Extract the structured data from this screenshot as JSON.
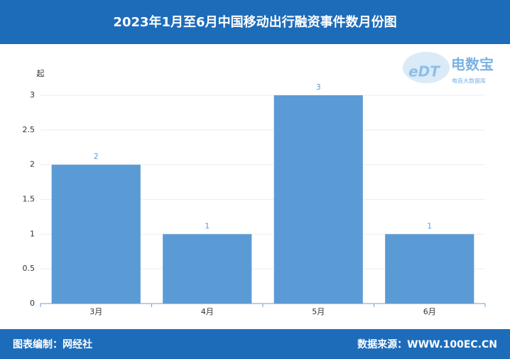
{
  "chart_data": {
    "type": "bar",
    "title": "2023年1月至6月中国移动出行融资事件数月份图",
    "y_label": "起",
    "categories": [
      "3月",
      "4月",
      "5月",
      "6月"
    ],
    "values": [
      2,
      1,
      3,
      1
    ],
    "color": "#5b9bd5",
    "ylim": [
      0,
      3
    ],
    "yticks": [
      0,
      0.5,
      1,
      1.5,
      2,
      2.5,
      3
    ],
    "grid": true
  },
  "logo": {
    "mark": "eDT",
    "name": "电数宝",
    "tagline": "电商大数据库"
  },
  "footer": {
    "left": "图表编制：网经社",
    "right": "数据来源：WWW.100EC.CN"
  }
}
